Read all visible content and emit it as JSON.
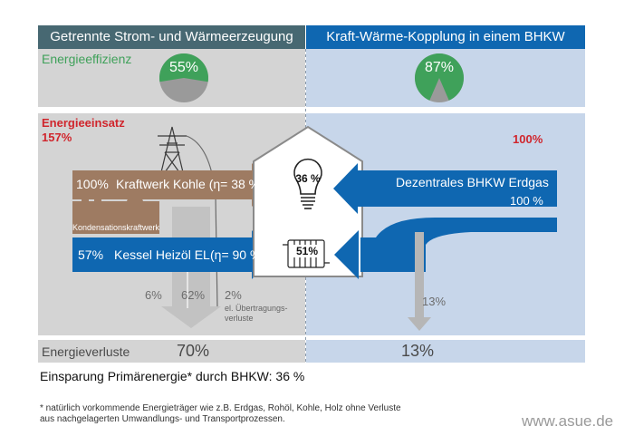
{
  "header": {
    "left_title": "Getrennte Strom- und Wärmeerzeugung",
    "right_title": "Kraft-Wärme-Kopplung in einem BHKW"
  },
  "efficiency": {
    "label": "Energieeffizienz",
    "left_value": "55%",
    "right_value": "87%",
    "left_fraction": 0.55,
    "right_fraction": 0.87
  },
  "input": {
    "label": "Energieeinsatz",
    "left_value": "157%",
    "right_value": "100%"
  },
  "left_arrows": {
    "coal_pct": "100%",
    "coal_label": "Kraftwerk Kohle (η= 38 %)",
    "plant_label": "Kondensationskraftwerk",
    "oil_pct": "57%",
    "oil_label": "Kessel Heizöl EL",
    "oil_eta": "(η= 90 %)"
  },
  "house": {
    "electricity_pct": "36 %",
    "heat_pct": "51%"
  },
  "right_arrows": {
    "chp_label": "Dezentrales BHKW Erdgas",
    "chp_pct": "100 %",
    "loss_pct": "13%"
  },
  "losses_left": {
    "oil_loss": "6%",
    "coal_loss": "62%",
    "grid_loss": "2%",
    "grid_loss_note_1": "el. Übertragungs-",
    "grid_loss_note_2": "verluste"
  },
  "losses": {
    "label": "Energieverluste",
    "left_value": "70%",
    "right_value": "13%"
  },
  "savings": "Einsparung Primärenergie* durch BHKW: 36 %",
  "footnote_1": "* natürlich vorkommende Energieträger wie z.B. Erdgas, Rohöl, Kohle, Holz ohne Verluste",
  "footnote_2": "aus nachgelagerten Umwandlungs- und Transportprozessen.",
  "website": "www.asue.de",
  "colors": {
    "header_left": "#476872",
    "header_right": "#0f67b1",
    "panel_grey": "#d4d4d4",
    "panel_blue": "#c7d6ea",
    "arrow_blue": "#0f67b1",
    "arrow_brown": "#9e7b62",
    "green": "#3fa15a",
    "red": "#d0262d"
  }
}
